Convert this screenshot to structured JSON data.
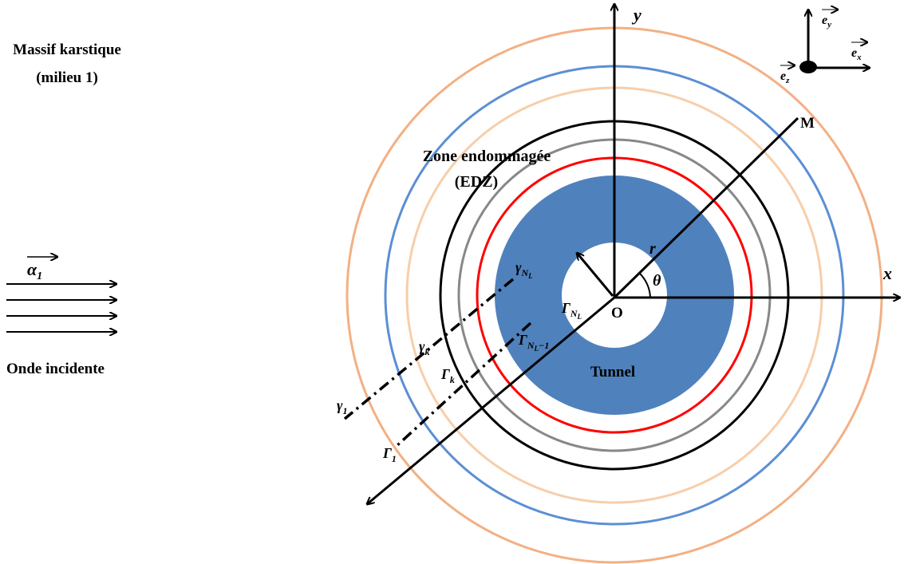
{
  "texts": {
    "massif_line1": "Massif karstique",
    "massif_line2": "(milieu 1)",
    "onde": "Onde incidente",
    "alpha": "α",
    "alpha_sub": "1",
    "zone_line1": "Zone endommagée",
    "zone_line2": "(EDZ)",
    "tunnel": "Tunnel",
    "origin": "O",
    "point_m": "M",
    "axis_x": "x",
    "axis_y": "y",
    "r": "r",
    "theta": "θ",
    "gamma_upper": "Γ",
    "gamma_lower": "γ",
    "sub_NL": "N",
    "sub_L": "L",
    "sub_minus1": "−1",
    "sub_k": "k",
    "sub_1": "1",
    "basis_e": "e",
    "sub_x": "x",
    "sub_y": "y",
    "sub_z": "z"
  },
  "colors": {
    "tunnel_fill": "#4f81bd",
    "ring_red": "#ff0000",
    "ring_gray": "#888888",
    "ring_black": "#000000",
    "ring_peach": "#f7ceaa",
    "ring_blue": "#5b8fd4",
    "ring_orange": "#f3b083"
  },
  "icons": {
    "incident_wave": "four-parallel-arrows",
    "basis": "cartesian-basis-triad"
  }
}
